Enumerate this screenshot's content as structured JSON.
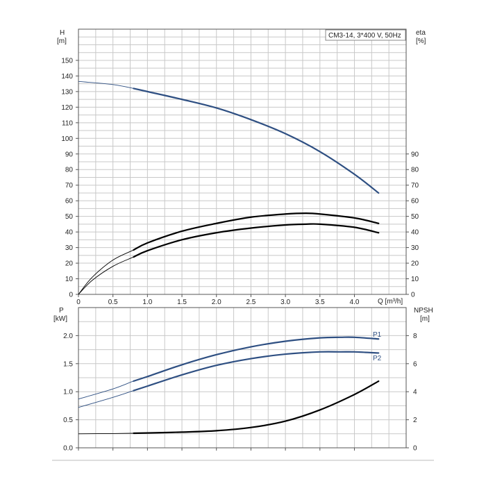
{
  "chart_data": [
    {
      "type": "line",
      "title": "CM3-14, 3*400 V, 50Hz",
      "xlabel": "Q [m³/h]",
      "ylabel_left": "H",
      "ylabel_left_unit": "[m]",
      "ylabel_right": "eta",
      "ylabel_right_unit": "[%]",
      "xlim": [
        0,
        4.75
      ],
      "ylim_left": [
        0,
        170
      ],
      "ylim_right": [
        0,
        170
      ],
      "x_ticks": [
        "0",
        "0.5",
        "1.0",
        "1.5",
        "2.0",
        "2.5",
        "3.0",
        "3.5",
        "4.0"
      ],
      "y_ticks_left": [
        "0",
        "10",
        "20",
        "30",
        "40",
        "50",
        "60",
        "70",
        "80",
        "90",
        "100",
        "110",
        "120",
        "130",
        "140",
        "150"
      ],
      "y_ticks_right": [
        "0",
        "10",
        "20",
        "30",
        "40",
        "50",
        "60",
        "70",
        "80",
        "90"
      ],
      "grid": true,
      "series": [
        {
          "color": "#2e4f82",
          "axis": "left",
          "operating_from": 0.8,
          "x": [
            0,
            0.5,
            0.8,
            1.0,
            1.5,
            2.0,
            2.5,
            3.0,
            3.5,
            4.0,
            4.35
          ],
          "values": [
            136.5,
            134.5,
            132,
            130,
            125,
            119.5,
            112,
            103,
            91.5,
            77,
            65
          ]
        },
        {
          "color": "#000000",
          "axis": "right",
          "operating_from": 0.8,
          "x": [
            0,
            0.2,
            0.5,
            0.8,
            1.0,
            1.5,
            2.0,
            2.5,
            3.0,
            3.3,
            3.5,
            4.0,
            4.35
          ],
          "values": [
            0,
            11,
            22,
            28.5,
            33,
            40.5,
            45.5,
            49.5,
            51.5,
            52,
            51.5,
            49,
            45.5
          ]
        },
        {
          "color": "#000000",
          "axis": "right",
          "operating_from": 0.8,
          "x": [
            0,
            0.2,
            0.5,
            0.8,
            1.0,
            1.5,
            2.0,
            2.5,
            3.0,
            3.3,
            3.5,
            4.0,
            4.35
          ],
          "values": [
            0,
            9,
            18,
            24,
            28,
            35,
            39.5,
            42.5,
            44.5,
            45,
            45,
            43,
            39.5
          ]
        }
      ]
    },
    {
      "type": "line",
      "xlabel": "",
      "ylabel_left": "P",
      "ylabel_left_unit": "[kW]",
      "ylabel_right": "NPSH",
      "ylabel_right_unit": "[m]",
      "xlim": [
        0,
        4.75
      ],
      "ylim_left": [
        0,
        2.5
      ],
      "ylim_right": [
        0,
        10
      ],
      "y_ticks_left": [
        "0.0",
        "0.5",
        "1.0",
        "1.5",
        "2.0"
      ],
      "y_ticks_right": [
        "0",
        "2",
        "4",
        "6",
        "8"
      ],
      "grid": true,
      "series": [
        {
          "name": "P1",
          "color": "#2e4f82",
          "axis": "left",
          "operating_from": 0.8,
          "x": [
            0,
            0.5,
            0.8,
            1.0,
            1.5,
            2.0,
            2.5,
            3.0,
            3.5,
            3.8,
            4.0,
            4.35
          ],
          "values": [
            0.87,
            1.05,
            1.19,
            1.27,
            1.48,
            1.66,
            1.8,
            1.9,
            1.96,
            1.97,
            1.97,
            1.94
          ]
        },
        {
          "name": "P2",
          "color": "#2e4f82",
          "axis": "left",
          "operating_from": 0.8,
          "x": [
            0,
            0.5,
            0.8,
            1.0,
            1.5,
            2.0,
            2.5,
            3.0,
            3.5,
            3.8,
            4.0,
            4.35
          ],
          "values": [
            0.72,
            0.9,
            1.02,
            1.1,
            1.3,
            1.47,
            1.59,
            1.67,
            1.71,
            1.71,
            1.71,
            1.69
          ]
        },
        {
          "color": "#000000",
          "axis": "right",
          "operating_from": 0.8,
          "x": [
            0,
            0.5,
            0.8,
            1.0,
            1.5,
            2.0,
            2.5,
            3.0,
            3.5,
            4.0,
            4.35
          ],
          "values": [
            1.0,
            1.02,
            1.04,
            1.06,
            1.12,
            1.22,
            1.45,
            1.9,
            2.7,
            3.8,
            4.75
          ]
        }
      ]
    }
  ]
}
